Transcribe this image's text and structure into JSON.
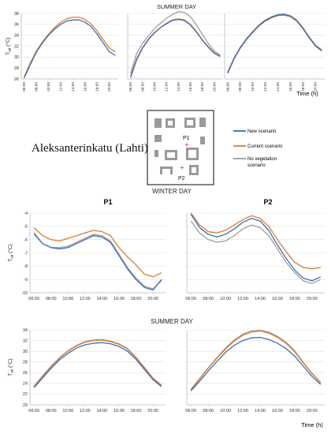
{
  "headings": {
    "summer_top": "SUMMER DAY",
    "winter": "WINTER DAY",
    "summer_bottom": "SUMMER DAY"
  },
  "location": "Aleksanterinkatu (Lahti)",
  "map": {
    "p1_label": "P1",
    "p2_label": "P2"
  },
  "legend": [
    {
      "name": "New scenario",
      "color": "#3d6eb5"
    },
    {
      "name": "Current scenario",
      "color": "#e07b2d"
    },
    {
      "name": "No vegetation scenario",
      "color": "#9e9e9e"
    }
  ],
  "ylabel": "T",
  "ylabel_sub": "air",
  "ylabel_unit": "(°C)",
  "time_label": "Time (h)",
  "x_ticks": [
    "06:00",
    "08:00",
    "10:00",
    "12:00",
    "14:00",
    "16:00",
    "18:00",
    "20:00"
  ],
  "chart_data": [
    {
      "type": "line",
      "panel": "top-left",
      "x": [
        6,
        7,
        8,
        9,
        10,
        11,
        12,
        13,
        14,
        15,
        16,
        17,
        18,
        19,
        20,
        21
      ],
      "ylim": [
        26,
        38
      ],
      "yticks": [
        26,
        28,
        30,
        32,
        34,
        36,
        38
      ],
      "series": [
        {
          "name": "Current scenario",
          "values": [
            26.4,
            28.9,
            31.1,
            32.8,
            34.2,
            35.4,
            36.4,
            37.0,
            37.3,
            37.3,
            36.9,
            36.1,
            34.8,
            33.2,
            31.7,
            30.9
          ]
        },
        {
          "name": "New scenario",
          "values": [
            26.2,
            28.6,
            30.9,
            32.6,
            34.0,
            35.1,
            36.0,
            36.6,
            36.8,
            36.8,
            36.4,
            35.6,
            34.2,
            32.6,
            31.0,
            30.3
          ]
        }
      ]
    },
    {
      "type": "line",
      "panel": "top-middle",
      "x": [
        6,
        7,
        8,
        9,
        10,
        11,
        12,
        13,
        14,
        15,
        16,
        17,
        18,
        19,
        20,
        21
      ],
      "ylim": [
        26,
        38
      ],
      "yticks": [
        26,
        28,
        30,
        32,
        34,
        36,
        38
      ],
      "series": [
        {
          "name": "No vegetation scenario",
          "values": [
            27.0,
            30.6,
            32.5,
            33.9,
            35.2,
            36.2,
            37.1,
            37.8,
            38.3,
            38.2,
            37.4,
            35.9,
            34.2,
            32.5,
            31.1,
            30.4
          ]
        },
        {
          "name": "Current scenario",
          "values": [
            26.2,
            29.4,
            31.6,
            33.2,
            34.4,
            35.4,
            36.2,
            36.8,
            37.0,
            36.8,
            36.0,
            34.7,
            33.2,
            31.9,
            30.8,
            30.2
          ]
        },
        {
          "name": "New scenario",
          "values": [
            26.4,
            29.6,
            31.7,
            33.3,
            34.5,
            35.4,
            36.1,
            36.7,
            36.9,
            36.7,
            35.9,
            34.6,
            33.1,
            31.8,
            30.7,
            30.1
          ]
        }
      ]
    },
    {
      "type": "line",
      "panel": "top-right",
      "x": [
        6,
        7,
        8,
        9,
        10,
        11,
        12,
        13,
        14,
        15,
        16,
        17,
        18,
        19,
        20,
        21
      ],
      "ylim": [
        26,
        38
      ],
      "yticks": [
        26,
        28,
        30,
        32,
        34,
        36,
        38
      ],
      "series": [
        {
          "name": "No vegetation scenario",
          "values": [
            27.2,
            29.8,
            31.8,
            33.4,
            34.7,
            35.9,
            36.8,
            37.4,
            37.8,
            37.9,
            37.6,
            36.8,
            35.4,
            33.7,
            32.2,
            31.3
          ]
        },
        {
          "name": "Current scenario",
          "values": [
            27.0,
            29.6,
            31.6,
            33.2,
            34.5,
            35.7,
            36.6,
            37.2,
            37.6,
            37.7,
            37.4,
            36.6,
            35.2,
            33.5,
            32.0,
            31.1
          ]
        },
        {
          "name": "New scenario",
          "values": [
            27.1,
            29.7,
            31.7,
            33.3,
            34.6,
            35.8,
            36.7,
            37.3,
            37.7,
            37.8,
            37.5,
            36.7,
            35.3,
            33.6,
            32.1,
            31.2
          ]
        }
      ]
    },
    {
      "type": "line",
      "panel": "winter-P1",
      "title": "P1",
      "x": [
        6,
        7,
        8,
        9,
        10,
        11,
        12,
        13,
        14,
        15,
        16,
        17,
        18,
        19,
        20,
        21
      ],
      "ylim": [
        -10,
        -4
      ],
      "yticks": [
        -4,
        -5,
        -6,
        -7,
        -8,
        -9,
        -10
      ],
      "series": [
        {
          "name": "Current scenario",
          "values": [
            -5.1,
            -5.7,
            -6.0,
            -6.1,
            -5.9,
            -5.7,
            -5.5,
            -5.3,
            -5.4,
            -5.7,
            -6.6,
            -7.3,
            -7.9,
            -8.6,
            -8.8,
            -8.5
          ]
        },
        {
          "name": "New scenario",
          "values": [
            -5.5,
            -6.3,
            -6.6,
            -6.7,
            -6.6,
            -6.3,
            -6.0,
            -5.7,
            -5.8,
            -6.2,
            -7.2,
            -8.2,
            -9.0,
            -9.6,
            -9.8,
            -9.0
          ]
        },
        {
          "name": "No vegetation scenario",
          "values": [
            -5.6,
            -6.3,
            -6.6,
            -6.6,
            -6.5,
            -6.2,
            -5.9,
            -5.6,
            -5.7,
            -6.1,
            -7.1,
            -8.1,
            -8.9,
            -9.5,
            -9.7,
            -9.1
          ]
        }
      ]
    },
    {
      "type": "line",
      "panel": "winter-P2",
      "title": "P2",
      "x": [
        6,
        7,
        8,
        9,
        10,
        11,
        12,
        13,
        14,
        15,
        16,
        17,
        18,
        19,
        20,
        21
      ],
      "ylim": [
        -10,
        -4
      ],
      "yticks": [
        -4,
        -5,
        -6,
        -7,
        -8,
        -9,
        -10
      ],
      "series": [
        {
          "name": "Current scenario",
          "values": [
            -4.0,
            -4.9,
            -5.4,
            -5.5,
            -5.3,
            -4.9,
            -4.5,
            -4.2,
            -4.4,
            -5.0,
            -6.0,
            -6.9,
            -7.7,
            -8.1,
            -8.2,
            -8.1
          ]
        },
        {
          "name": "New scenario",
          "values": [
            -4.1,
            -5.1,
            -5.6,
            -5.8,
            -5.6,
            -5.2,
            -4.7,
            -4.4,
            -4.6,
            -5.3,
            -6.4,
            -7.4,
            -8.3,
            -8.9,
            -9.1,
            -8.8
          ]
        },
        {
          "name": "No vegetation scenario",
          "values": [
            -4.6,
            -5.5,
            -6.0,
            -6.2,
            -6.1,
            -5.7,
            -5.2,
            -4.9,
            -5.1,
            -5.7,
            -6.7,
            -7.7,
            -8.5,
            -9.1,
            -9.3,
            -9.0
          ]
        }
      ]
    },
    {
      "type": "line",
      "panel": "summer-P1",
      "x": [
        6,
        7,
        8,
        9,
        10,
        11,
        12,
        13,
        14,
        15,
        16,
        17,
        18,
        19,
        20,
        21
      ],
      "ylim": [
        20,
        34
      ],
      "yticks": [
        20,
        22,
        24,
        26,
        28,
        30,
        32,
        34
      ],
      "series": [
        {
          "name": "Current scenario",
          "values": [
            23.4,
            25.3,
            27.1,
            28.7,
            30.0,
            31.0,
            31.7,
            32.0,
            32.1,
            31.8,
            31.3,
            30.4,
            28.8,
            26.9,
            24.9,
            23.6
          ]
        },
        {
          "name": "No vegetation scenario",
          "values": [
            23.5,
            25.4,
            27.2,
            28.8,
            30.1,
            31.1,
            31.8,
            32.1,
            32.2,
            31.9,
            31.4,
            30.5,
            28.9,
            27.0,
            25.0,
            23.7
          ]
        },
        {
          "name": "New scenario",
          "values": [
            23.2,
            25.0,
            26.8,
            28.4,
            29.6,
            30.6,
            31.2,
            31.5,
            31.6,
            31.4,
            30.9,
            30.0,
            28.5,
            26.6,
            24.7,
            23.4
          ]
        }
      ]
    },
    {
      "type": "line",
      "panel": "summer-P2",
      "x": [
        6,
        7,
        8,
        9,
        10,
        11,
        12,
        13,
        14,
        15,
        16,
        17,
        18,
        19,
        20,
        21
      ],
      "ylim": [
        20,
        34
      ],
      "yticks": [
        20,
        22,
        24,
        26,
        28,
        30,
        32,
        34
      ],
      "series": [
        {
          "name": "No vegetation scenario",
          "values": [
            22.9,
            24.9,
            26.9,
            28.8,
            30.6,
            32.1,
            33.2,
            33.8,
            33.9,
            33.6,
            32.8,
            31.7,
            30.1,
            27.9,
            25.9,
            24.2
          ]
        },
        {
          "name": "Current scenario",
          "values": [
            22.8,
            24.8,
            26.8,
            28.7,
            30.4,
            31.9,
            33.0,
            33.6,
            33.8,
            33.4,
            32.6,
            31.5,
            29.9,
            27.8,
            25.8,
            24.1
          ]
        },
        {
          "name": "New scenario",
          "values": [
            22.6,
            24.4,
            26.3,
            28.1,
            29.8,
            31.1,
            32.0,
            32.5,
            32.6,
            32.2,
            31.5,
            30.5,
            29.1,
            27.2,
            25.3,
            23.8
          ]
        }
      ]
    }
  ]
}
